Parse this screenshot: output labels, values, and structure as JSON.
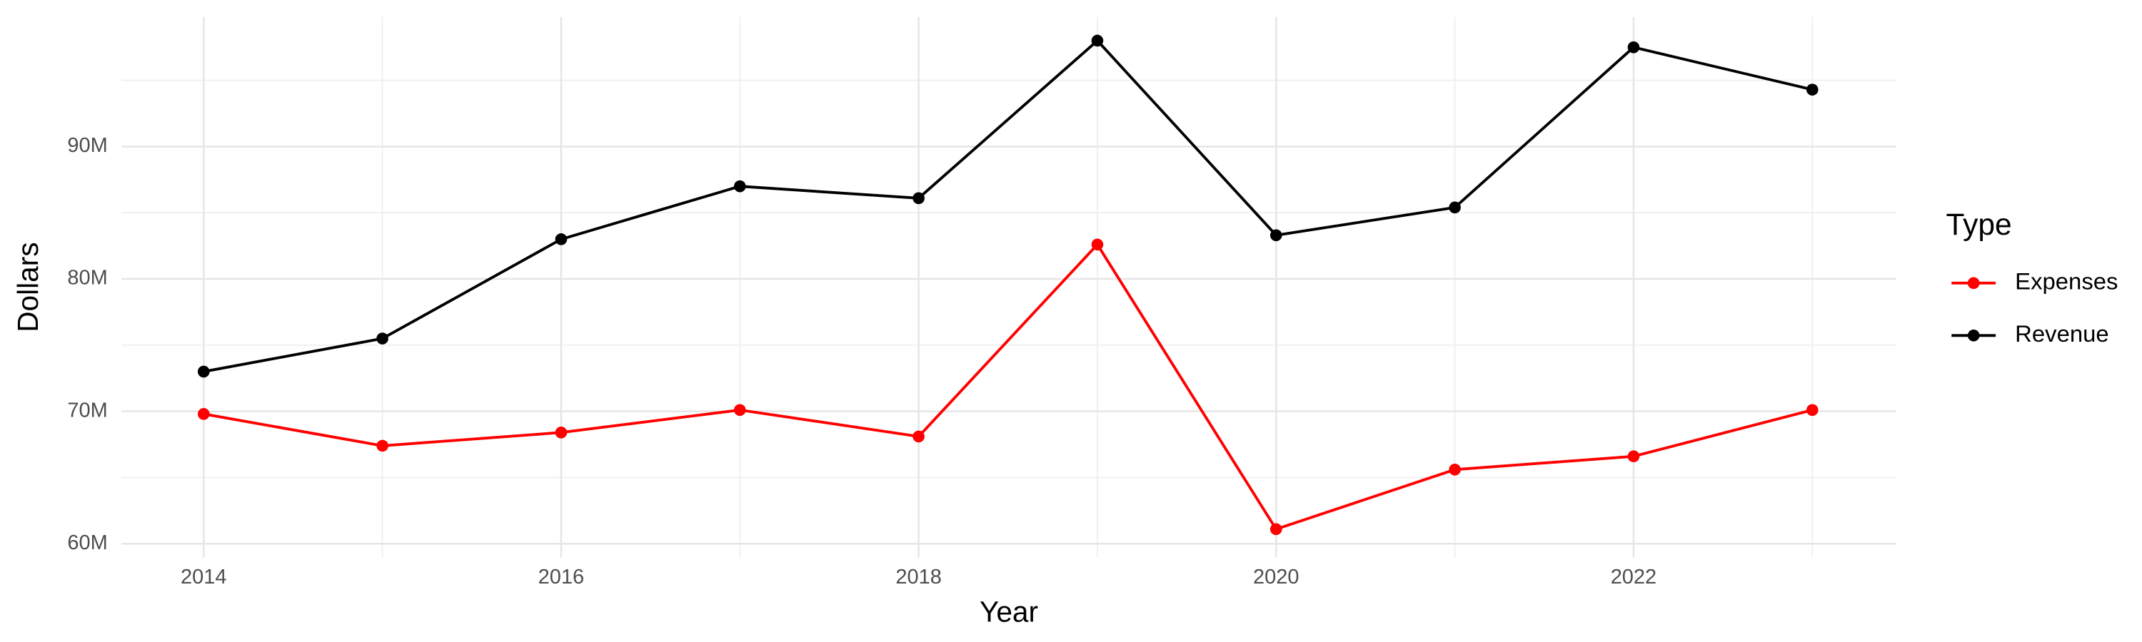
{
  "chart_data": {
    "type": "line",
    "x_label": "Year",
    "y_label": "Dollars",
    "legend_title": "Type",
    "x": [
      2014,
      2015,
      2016,
      2017,
      2018,
      2019,
      2020,
      2021,
      2022,
      2023
    ],
    "series": [
      {
        "name": "Expenses",
        "color": "#ff0000",
        "values": [
          69800000,
          67400000,
          68400000,
          70100000,
          68100000,
          82600000,
          61100000,
          65600000,
          66600000,
          70100000
        ]
      },
      {
        "name": "Revenue",
        "color": "#000000",
        "values": [
          73000000,
          75500000,
          83000000,
          87000000,
          86100000,
          98000000,
          83300000,
          85400000,
          97500000,
          94300000
        ]
      }
    ],
    "xlim": [
      2013.54,
      2023.47
    ],
    "xticks": [
      2014,
      2016,
      2018,
      2020,
      2022
    ],
    "ylim": [
      58960000,
      99790000
    ],
    "yticks": [
      {
        "value": 60000000,
        "label": "60M"
      },
      {
        "value": 70000000,
        "label": "70M"
      },
      {
        "value": 80000000,
        "label": "80M"
      },
      {
        "value": 90000000,
        "label": "90M"
      }
    ],
    "grid": true,
    "legend_position": "right"
  }
}
